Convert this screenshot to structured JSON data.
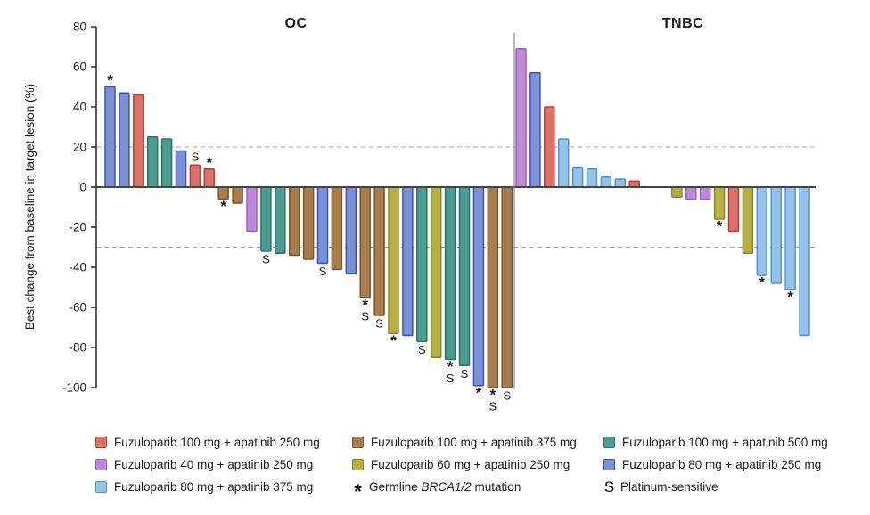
{
  "chart_data": {
    "type": "bar",
    "subtype": "waterfall",
    "ylabel": "Best change from baseline in target lesion (%)",
    "ylim": [
      -100,
      80
    ],
    "yticks": [
      80,
      60,
      40,
      20,
      0,
      -20,
      -40,
      -60,
      -80,
      -100
    ],
    "reference_lines": [
      20,
      -30
    ],
    "grid": "off",
    "legend_position": "bottom",
    "groups": [
      {
        "label": "Fuzuloparib 100 mg + apatinib 250 mg",
        "fill": "#DB716B",
        "stroke": "#C13B31"
      },
      {
        "label": "Fuzuloparib 40 mg + apatinib 250 mg",
        "fill": "#BC8AD8",
        "stroke": "#A35BCB"
      },
      {
        "label": "Fuzuloparib 80 mg + apatinib 375 mg",
        "fill": "#95C2E8",
        "stroke": "#4E93D6"
      },
      {
        "label": "Fuzuloparib 100 mg + apatinib 375 mg",
        "fill": "#A97D4D",
        "stroke": "#7D5627"
      },
      {
        "label": "Fuzuloparib 60 mg + apatinib 250 mg",
        "fill": "#B4B045",
        "stroke": "#8A8723"
      },
      {
        "label": "Fuzuloparib 100 mg + apatinib 500 mg",
        "fill": "#4C9C92",
        "stroke": "#26756B"
      },
      {
        "label": "Fuzuloparib 80 mg + apatinib 250 mg",
        "fill": "#7C90D5",
        "stroke": "#3D4FC6"
      }
    ],
    "panels": [
      {
        "name": "OC",
        "bars": [
          {
            "value": 50,
            "group": 6,
            "flags": [
              "*"
            ]
          },
          {
            "value": 47,
            "group": 6
          },
          {
            "value": 46,
            "group": 0
          },
          {
            "value": 25,
            "group": 5
          },
          {
            "value": 24,
            "group": 5
          },
          {
            "value": 18,
            "group": 6
          },
          {
            "value": 11,
            "group": 0,
            "flags": [
              "S"
            ]
          },
          {
            "value": 9,
            "group": 0,
            "flags": [
              "*"
            ]
          },
          {
            "value": -6,
            "group": 3,
            "flags": [
              "*"
            ]
          },
          {
            "value": -8,
            "group": 3
          },
          {
            "value": -22,
            "group": 1
          },
          {
            "value": -32,
            "group": 5,
            "flags": [
              "S"
            ]
          },
          {
            "value": -33,
            "group": 5
          },
          {
            "value": -34,
            "group": 3
          },
          {
            "value": -36,
            "group": 3
          },
          {
            "value": -38,
            "group": 6,
            "flags": [
              "S"
            ]
          },
          {
            "value": -41,
            "group": 3
          },
          {
            "value": -43,
            "group": 6
          },
          {
            "value": -55,
            "group": 3,
            "flags": [
              "*",
              "S"
            ]
          },
          {
            "value": -64,
            "group": 3,
            "flags": [
              "S"
            ]
          },
          {
            "value": -73,
            "group": 4,
            "flags": [
              "*"
            ]
          },
          {
            "value": -74,
            "group": 6
          },
          {
            "value": -77,
            "group": 5,
            "flags": [
              "S"
            ]
          },
          {
            "value": -85,
            "group": 4
          },
          {
            "value": -86,
            "group": 5,
            "flags": [
              "*",
              "S"
            ]
          },
          {
            "value": -89,
            "group": 5,
            "flags": [
              "S"
            ]
          },
          {
            "value": -99,
            "group": 6,
            "flags": [
              "*"
            ]
          },
          {
            "value": -100,
            "group": 3,
            "flags": [
              "*",
              "S"
            ]
          },
          {
            "value": -100,
            "group": 3,
            "flags": [
              "S"
            ]
          }
        ]
      },
      {
        "name": "TNBC",
        "bars": [
          {
            "value": 69,
            "group": 1
          },
          {
            "value": 57,
            "group": 6
          },
          {
            "value": 40,
            "group": 0
          },
          {
            "value": 24,
            "group": 2
          },
          {
            "value": 10,
            "group": 2
          },
          {
            "value": 9,
            "group": 2
          },
          {
            "value": 5,
            "group": 2
          },
          {
            "value": 4,
            "group": 2
          },
          {
            "value": 3,
            "group": 0
          },
          {
            "value": null,
            "group": null
          },
          {
            "value": null,
            "group": null
          },
          {
            "value": -5,
            "group": 4
          },
          {
            "value": -6,
            "group": 1
          },
          {
            "value": -6,
            "group": 1
          },
          {
            "value": -16,
            "group": 4,
            "flags": [
              "*"
            ]
          },
          {
            "value": -22,
            "group": 0
          },
          {
            "value": -33,
            "group": 4
          },
          {
            "value": -44,
            "group": 2,
            "flags": [
              "*"
            ]
          },
          {
            "value": -48,
            "group": 2
          },
          {
            "value": -51,
            "group": 2,
            "flags": [
              "*"
            ]
          },
          {
            "value": -74,
            "group": 2
          }
        ]
      }
    ],
    "flag_legend": {
      "asterisk_symbol": "*",
      "asterisk_prefix": "Germline ",
      "asterisk_italic": "BRCA1/2",
      "asterisk_suffix": " mutation",
      "s_symbol": "S",
      "s_label": "Platinum-sensitive"
    },
    "colors": {
      "axis": "#262626",
      "zero_line": "#454545",
      "reference_line": "#A6A6A6",
      "panel_divider": "#8C8C8C",
      "text": "#1A1A1A",
      "background": "#FFFFFF"
    }
  }
}
